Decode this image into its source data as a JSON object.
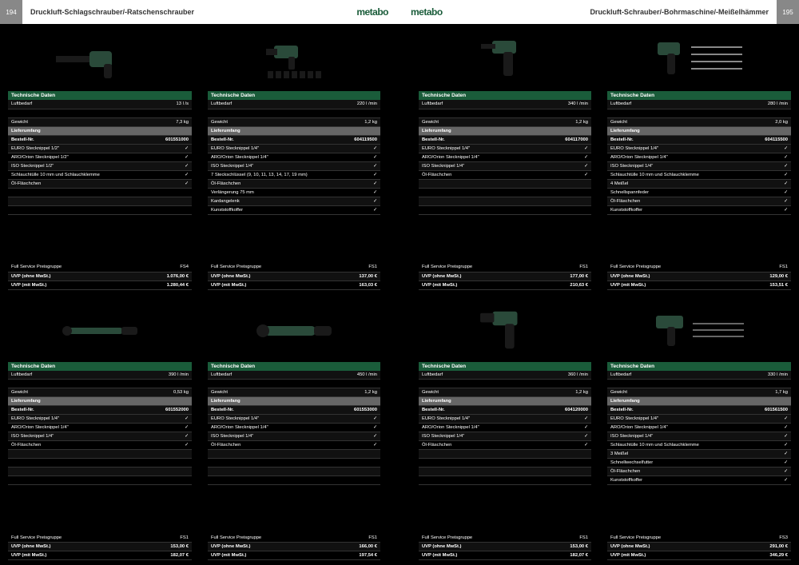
{
  "colors": {
    "brand_green": "#1a5c3a",
    "header_gray": "#888888",
    "row_stripe_a": "#111111",
    "row_stripe_b": "#000000",
    "gray_header_row": "#666666",
    "text_white": "#ffffff",
    "bg_black": "#000000",
    "page_bg": "#ffffff"
  },
  "left_page": {
    "number": "194",
    "title": "Druckluft-Schlagschrauber/-Ratschenschrauber",
    "brand": "metabo"
  },
  "right_page": {
    "number": "195",
    "title": "Druckluft-Schrauber/-Bohrmaschine/-Meißelhämmer",
    "brand": "metabo"
  },
  "labels": {
    "tech": "Technische Daten",
    "lieferumfang": "Lieferumfang",
    "luftbedarf": "Luftbedarf",
    "gewicht": "Gewicht",
    "bestell": "Bestell-Nr.",
    "fsp": "Full Service Preisgruppe",
    "uvp_ohne": "UVP (ohne MwSt.)",
    "uvp_mit": "UVP (mit MwSt.)",
    "check": "✓"
  },
  "products": [
    {
      "img": "impact_long",
      "luftbedarf": "13 l /s",
      "gewicht": "7,3 kg",
      "bestell": "601551000",
      "fsp": "FS4",
      "uvp_ohne": "1.076,00 €",
      "uvp_mit": "1.280,44 €",
      "items": [
        "EURO Stecknippel 1/2\"",
        "ARO/Orion Stecknippel 1/2\"",
        "ISO Stecknippel 1/2\"",
        "Schlauchtülle 10 mm und Schlauchklemme",
        "Öl-Fläschchen"
      ]
    },
    {
      "img": "impact_sockets",
      "luftbedarf": "220 l /min",
      "gewicht": "1,2 kg",
      "bestell": "604119500",
      "fsp": "FS1",
      "uvp_ohne": "137,00 €",
      "uvp_mit": "163,03 €",
      "items": [
        "EURO Stecknippel 1/4\"",
        "ARO/Orion Stecknippel 1/4\"",
        "ISO Stecknippel 1/4\"",
        "7 Steckschlüssel (9, 10, 11, 13, 14, 17, 19 mm)",
        "Öl-Fläschchen",
        "Verlängerung 75 mm",
        "Kardangelenk",
        "Kunststoffkoffer"
      ]
    },
    {
      "img": "drill",
      "luftbedarf": "340 l /min",
      "gewicht": "1,2 kg",
      "bestell": "604117000",
      "fsp": "FS1",
      "uvp_ohne": "177,00 €",
      "uvp_mit": "210,63 €",
      "items": [
        "EURO Stecknippel 1/4\"",
        "ARO/Orion Stecknippel 1/4\"",
        "ISO Stecknippel 1/4\"",
        "Öl-Fläschchen"
      ]
    },
    {
      "img": "chisel_set",
      "luftbedarf": "280 l /min",
      "gewicht": "2,0 kg",
      "bestell": "604115500",
      "fsp": "FS1",
      "uvp_ohne": "129,00 €",
      "uvp_mit": "153,51 €",
      "items": [
        "EURO Stecknippel 1/4\"",
        "ARO/Orion Stecknippel 1/4\"",
        "ISO Stecknippel 1/4\"",
        "Schlauchtülle 10 mm und Schlauchklemme",
        "4 Meißel",
        "Schnellspannfeder",
        "Öl-Fläschchen",
        "Kunststoffkoffer"
      ]
    },
    {
      "img": "ratchet_slim",
      "luftbedarf": "390 l /min",
      "gewicht": "0,53 kg",
      "bestell": "601552000",
      "fsp": "FS1",
      "uvp_ohne": "153,00 €",
      "uvp_mit": "182,07 €",
      "items": [
        "EURO Stecknippel 1/4\"",
        "ARO/Orion Stecknippel 1/4\"",
        "ISO Stecknippel 1/4\"",
        "Öl-Fläschchen"
      ]
    },
    {
      "img": "ratchet",
      "luftbedarf": "450 l /min",
      "gewicht": "1,2 kg",
      "bestell": "601553000",
      "fsp": "FS1",
      "uvp_ohne": "166,00 €",
      "uvp_mit": "197,54 €",
      "items": [
        "EURO Stecknippel 1/4\"",
        "ARO/Orion Stecknippel 1/4\"",
        "ISO Stecknippel 1/4\"",
        "Öl-Fläschchen"
      ]
    },
    {
      "img": "drill_chuck",
      "luftbedarf": "360 l /min",
      "gewicht": "1,2 kg",
      "bestell": "604120000",
      "fsp": "FS1",
      "uvp_ohne": "153,00 €",
      "uvp_mit": "182,07 €",
      "items": [
        "EURO Stecknippel 1/4\"",
        "ARO/Orion Stecknippel 1/4\"",
        "ISO Stecknippel 1/4\"",
        "Öl-Fläschchen"
      ]
    },
    {
      "img": "needle_scaler",
      "luftbedarf": "330 l /min",
      "gewicht": "1,7 kg",
      "bestell": "601561500",
      "fsp": "FS3",
      "uvp_ohne": "291,00 €",
      "uvp_mit": "346,29 €",
      "items": [
        "EURO Stecknippel 1/4\"",
        "ARO/Orion Stecknippel 1/4\"",
        "ISO Stecknippel 1/4\"",
        "Schlauchtülle 10 mm und Schlauchklemme",
        "3 Meißel",
        "Schnellwechselfutter",
        "Öl-Fläschchen",
        "Kunststoffkoffer"
      ]
    }
  ]
}
